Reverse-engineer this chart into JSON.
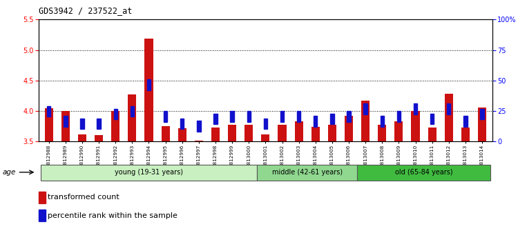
{
  "title": "GDS3942 / 237522_at",
  "samples": [
    "GSM812988",
    "GSM812989",
    "GSM812990",
    "GSM812991",
    "GSM812992",
    "GSM812993",
    "GSM812994",
    "GSM812995",
    "GSM812996",
    "GSM812997",
    "GSM812998",
    "GSM812999",
    "GSM813000",
    "GSM813001",
    "GSM813002",
    "GSM813003",
    "GSM813004",
    "GSM813005",
    "GSM813006",
    "GSM813007",
    "GSM813008",
    "GSM813009",
    "GSM813010",
    "GSM813011",
    "GSM813012",
    "GSM813013",
    "GSM813014"
  ],
  "transformed_count": [
    4.05,
    4.0,
    3.62,
    3.6,
    4.0,
    4.27,
    5.19,
    3.75,
    3.72,
    3.52,
    3.73,
    3.78,
    3.78,
    3.62,
    3.78,
    3.83,
    3.74,
    3.77,
    3.92,
    4.17,
    3.78,
    3.83,
    4.0,
    3.73,
    4.28,
    3.73,
    4.06
  ],
  "percentile_rank": [
    22,
    14,
    12,
    12,
    20,
    22,
    44,
    18,
    12,
    10,
    16,
    18,
    18,
    12,
    18,
    18,
    14,
    16,
    18,
    24,
    14,
    18,
    24,
    16,
    24,
    14,
    20
  ],
  "groups": [
    {
      "label": "young (19-31 years)",
      "start": 0,
      "end": 13,
      "color": "#c8f0c0"
    },
    {
      "label": "middle (42-61 years)",
      "start": 13,
      "end": 19,
      "color": "#90d890"
    },
    {
      "label": "old (65-84 years)",
      "start": 19,
      "end": 27,
      "color": "#40bb40"
    }
  ],
  "ylim_left": [
    3.5,
    5.5
  ],
  "ylim_right": [
    0,
    100
  ],
  "yticks_left": [
    3.5,
    4.0,
    4.5,
    5.0,
    5.5
  ],
  "yticks_right": [
    0,
    25,
    50,
    75,
    100
  ],
  "ytick_labels_right": [
    "0",
    "25",
    "50",
    "75",
    "100%"
  ],
  "bar_color_red": "#cc1111",
  "bar_color_blue": "#1111cc",
  "bar_width": 0.5,
  "bg_color": "#ffffff",
  "legend_items": [
    "transformed count",
    "percentile rank within the sample"
  ]
}
